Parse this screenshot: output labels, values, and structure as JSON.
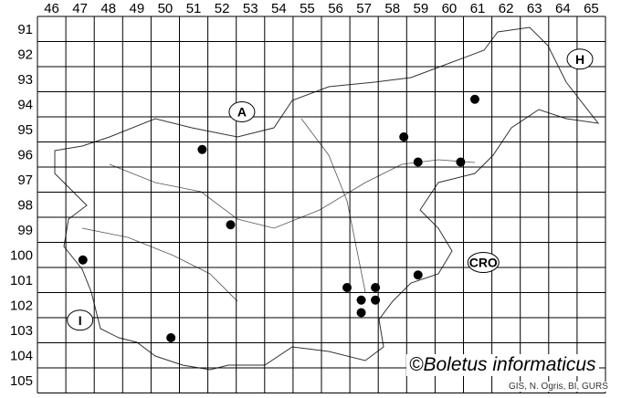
{
  "columns": [
    "46",
    "47",
    "48",
    "49",
    "50",
    "51",
    "52",
    "53",
    "54",
    "55",
    "56",
    "57",
    "58",
    "59",
    "60",
    "61",
    "62",
    "63",
    "64",
    "65"
  ],
  "rows": [
    "91",
    "92",
    "93",
    "94",
    "95",
    "96",
    "97",
    "98",
    "99",
    "100",
    "101",
    "102",
    "103",
    "104",
    "105"
  ],
  "region_labels": [
    {
      "text": "A",
      "col": 52.7,
      "row": 94.3
    },
    {
      "text": "H",
      "col": 64.6,
      "row": 92.2
    },
    {
      "text": "CRO",
      "col": 61.2,
      "row": 100.3
    },
    {
      "text": "I",
      "col": 47.0,
      "row": 102.6
    }
  ],
  "records": [
    {
      "col": 51.3,
      "row": 95.8
    },
    {
      "col": 60.9,
      "row": 93.8
    },
    {
      "col": 58.4,
      "row": 95.3
    },
    {
      "col": 58.9,
      "row": 96.3
    },
    {
      "col": 60.4,
      "row": 96.3
    },
    {
      "col": 52.3,
      "row": 98.8
    },
    {
      "col": 47.1,
      "row": 100.2
    },
    {
      "col": 58.9,
      "row": 100.8
    },
    {
      "col": 56.4,
      "row": 101.3
    },
    {
      "col": 56.9,
      "row": 101.8
    },
    {
      "col": 57.4,
      "row": 101.3
    },
    {
      "col": 57.4,
      "row": 101.8
    },
    {
      "col": 56.9,
      "row": 102.3
    },
    {
      "col": 50.2,
      "row": 103.3
    }
  ],
  "copyright": "©Boletus informaticus",
  "source": "GIS, N. Ogris, BI, GURS",
  "colors": {
    "grid": "#000000",
    "dot": "#000000",
    "border": "#333333"
  }
}
